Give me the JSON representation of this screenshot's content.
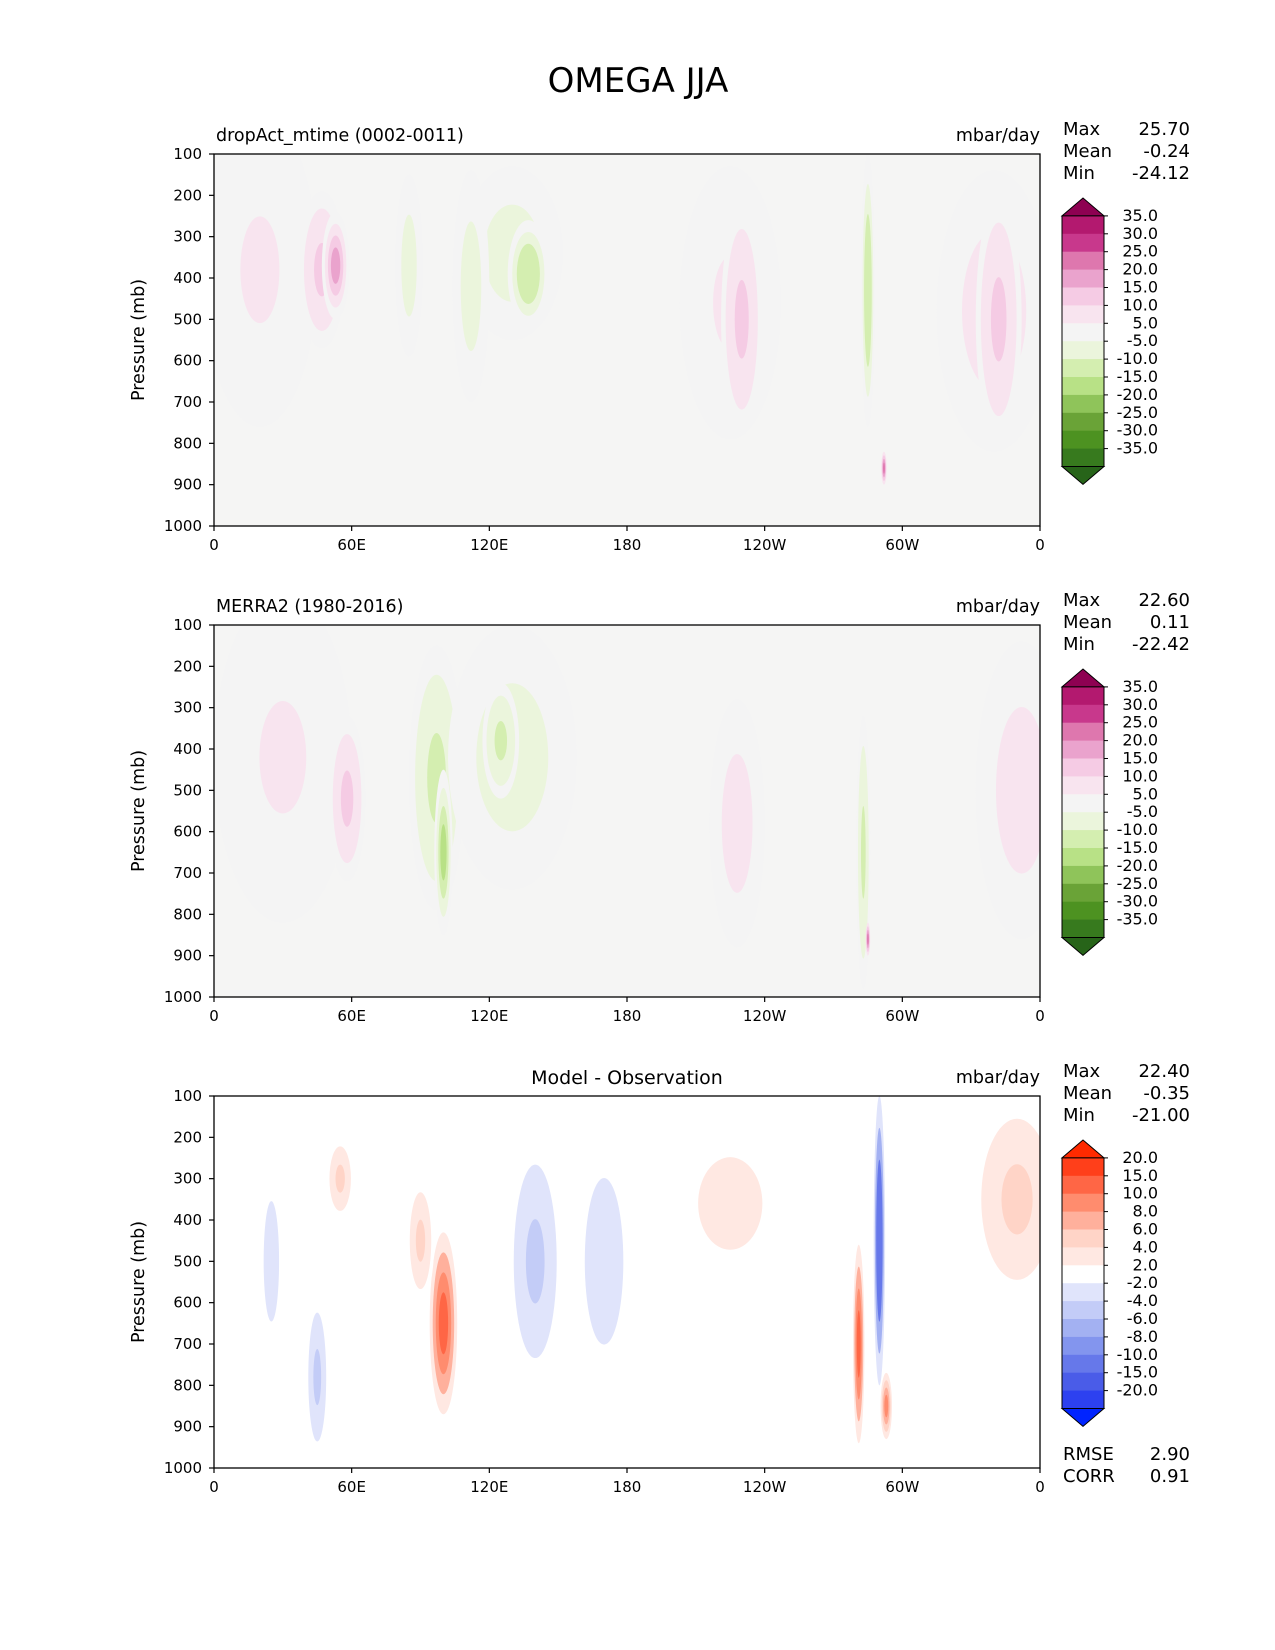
{
  "chart_data": {
    "type": "heatmap",
    "title": "OMEGA JJA",
    "panels": [
      {
        "id": "model",
        "title_left": "dropAct_mtime (0002-0011)",
        "title_center": "",
        "units": "mbar/day",
        "ylabel": "Pressure (mb)",
        "yticks": [
          "100",
          "200",
          "300",
          "400",
          "500",
          "600",
          "700",
          "800",
          "900",
          "1000"
        ],
        "xticks": [
          "0",
          "60E",
          "120E",
          "180",
          "120W",
          "60W",
          "0"
        ],
        "stats": [
          {
            "label": "Max",
            "value": "25.70"
          },
          {
            "label": "Mean",
            "value": "-0.24"
          },
          {
            "label": "Min",
            "value": "-24.12"
          }
        ],
        "colorbar": {
          "labels": [
            "35.0",
            "30.0",
            "25.0",
            "20.0",
            "15.0",
            "10.0",
            "5.0",
            "-5.0",
            "-10.0",
            "-15.0",
            "-20.0",
            "-25.0",
            "-30.0",
            "-35.0"
          ],
          "colors": [
            "#8e0152",
            "#b3196f",
            "#c8388c",
            "#de77ae",
            "#eaa3cd",
            "#f5cbe4",
            "#f8e4ef",
            "#f4f4f4",
            "#ebf5dc",
            "#d4eeb0",
            "#b8e186",
            "#8fc45a",
            "#6aa337",
            "#4d9221",
            "#377a1e",
            "#276419"
          ]
        },
        "features": [
          {
            "lon": 20,
            "p": 380,
            "wlon": 25,
            "wp": 380,
            "v": 6
          },
          {
            "lon": 47,
            "p": 380,
            "wlon": 10,
            "wp": 190,
            "v": 11
          },
          {
            "lon": 53,
            "p": 370,
            "wlon": 6,
            "wp": 130,
            "v": 17
          },
          {
            "lon": 85,
            "p": 370,
            "wlon": 6,
            "wp": 220,
            "v": -10
          },
          {
            "lon": 130,
            "p": 340,
            "wlon": 22,
            "wp": 210,
            "v": -8
          },
          {
            "lon": 137,
            "p": 390,
            "wlon": 9,
            "wp": 130,
            "v": -15
          },
          {
            "lon": 112,
            "p": 420,
            "wlon": 8,
            "wp": 280,
            "v": -9
          },
          {
            "lon": 225,
            "p": 460,
            "wlon": 22,
            "wp": 330,
            "v": 6
          },
          {
            "lon": 230,
            "p": 500,
            "wlon": 9,
            "wp": 280,
            "v": 10
          },
          {
            "lon": 285,
            "p": 430,
            "wlon": 3,
            "wp": 330,
            "v": -14
          },
          {
            "lon": 292,
            "p": 860,
            "wlon": 1.2,
            "wp": 40,
            "v": 24
          },
          {
            "lon": 340,
            "p": 480,
            "wlon": 25,
            "wp": 340,
            "v": 7
          },
          {
            "lon": 342,
            "p": 500,
            "wlon": 10,
            "wp": 300,
            "v": 11
          }
        ]
      },
      {
        "id": "obs",
        "title_left": "MERRA2 (1980-2016)",
        "title_center": "",
        "units": "mbar/day",
        "ylabel": "Pressure (mb)",
        "yticks": [
          "100",
          "200",
          "300",
          "400",
          "500",
          "600",
          "700",
          "800",
          "900",
          "1000"
        ],
        "xticks": [
          "0",
          "60E",
          "120E",
          "180",
          "120W",
          "60W",
          "0"
        ],
        "stats": [
          {
            "label": "Max",
            "value": "22.60"
          },
          {
            "label": "Mean",
            "value": "0.11"
          },
          {
            "label": "Min",
            "value": "-22.42"
          }
        ],
        "colorbar": {
          "labels": [
            "35.0",
            "30.0",
            "25.0",
            "20.0",
            "15.0",
            "10.0",
            "5.0",
            "-5.0",
            "-10.0",
            "-15.0",
            "-20.0",
            "-25.0",
            "-30.0",
            "-35.0"
          ],
          "colors": [
            "#8e0152",
            "#b3196f",
            "#c8388c",
            "#de77ae",
            "#eaa3cd",
            "#f5cbe4",
            "#f8e4ef",
            "#f4f4f4",
            "#ebf5dc",
            "#d4eeb0",
            "#b8e186",
            "#8fc45a",
            "#6aa337",
            "#4d9221",
            "#377a1e",
            "#276419"
          ]
        },
        "features": [
          {
            "lon": 30,
            "p": 420,
            "wlon": 30,
            "wp": 400,
            "v": 6
          },
          {
            "lon": 58,
            "p": 520,
            "wlon": 8,
            "wp": 200,
            "v": 12
          },
          {
            "lon": 97,
            "p": 470,
            "wlon": 12,
            "wp": 320,
            "v": -11
          },
          {
            "lon": 100,
            "p": 650,
            "wlon": 4,
            "wp": 200,
            "v": -17
          },
          {
            "lon": 130,
            "p": 420,
            "wlon": 28,
            "wp": 320,
            "v": -7
          },
          {
            "lon": 125,
            "p": 380,
            "wlon": 8,
            "wp": 140,
            "v": -11
          },
          {
            "lon": 228,
            "p": 580,
            "wlon": 12,
            "wp": 300,
            "v": 7
          },
          {
            "lon": 283,
            "p": 650,
            "wlon": 3,
            "wp": 330,
            "v": -13
          },
          {
            "lon": 285,
            "p": 860,
            "wlon": 1,
            "wp": 40,
            "v": 20
          },
          {
            "lon": 352,
            "p": 500,
            "wlon": 20,
            "wp": 360,
            "v": 7
          }
        ]
      },
      {
        "id": "diff",
        "title_left": "",
        "title_center": "Model - Observation",
        "units": "mbar/day",
        "ylabel": "Pressure (mb)",
        "yticks": [
          "100",
          "200",
          "300",
          "400",
          "500",
          "600",
          "700",
          "800",
          "900",
          "1000"
        ],
        "xticks": [
          "0",
          "60E",
          "120E",
          "180",
          "120W",
          "60W",
          "0"
        ],
        "stats": [
          {
            "label": "Max",
            "value": "22.40"
          },
          {
            "label": "Mean",
            "value": "-0.35"
          },
          {
            "label": "Min",
            "value": "-21.00"
          }
        ],
        "colorbar": {
          "labels": [
            "20.0",
            "15.0",
            "10.0",
            "8.0",
            "6.0",
            "4.0",
            "2.0",
            "-2.0",
            "-4.0",
            "-6.0",
            "-8.0",
            "-10.0",
            "-15.0",
            "-20.0"
          ],
          "colors": [
            "#ff2a00",
            "#ff3f1a",
            "#ff6645",
            "#ff8c6e",
            "#ffb09c",
            "#ffd4c7",
            "#ffe8e2",
            "#ffffff",
            "#e0e4fb",
            "#c3ccf7",
            "#a3b1f2",
            "#8395ee",
            "#6678ea",
            "#4a5ce8",
            "#2d41f0",
            "#0024ff"
          ]
        },
        "features": [
          {
            "lon": 55,
            "p": 300,
            "wlon": 6,
            "wp": 100,
            "v": 4
          },
          {
            "lon": 25,
            "p": 500,
            "wlon": 6,
            "wp": 260,
            "v": -4
          },
          {
            "lon": 45,
            "p": 780,
            "wlon": 5,
            "wp": 200,
            "v": -5
          },
          {
            "lon": 100,
            "p": 650,
            "wlon": 6,
            "wp": 220,
            "v": 12
          },
          {
            "lon": 90,
            "p": 450,
            "wlon": 6,
            "wp": 150,
            "v": 4
          },
          {
            "lon": 140,
            "p": 500,
            "wlon": 12,
            "wp": 300,
            "v": -5
          },
          {
            "lon": 170,
            "p": 500,
            "wlon": 15,
            "wp": 360,
            "v": -3
          },
          {
            "lon": 225,
            "p": 360,
            "wlon": 25,
            "wp": 200,
            "v": 3
          },
          {
            "lon": 290,
            "p": 450,
            "wlon": 2.5,
            "wp": 350,
            "v": -14
          },
          {
            "lon": 281,
            "p": 700,
            "wlon": 2.5,
            "wp": 240,
            "v": 12
          },
          {
            "lon": 293,
            "p": 850,
            "wlon": 2.5,
            "wp": 80,
            "v": 9
          },
          {
            "lon": 350,
            "p": 350,
            "wlon": 20,
            "wp": 250,
            "v": 4
          }
        ],
        "extra_stats": [
          {
            "label": "RMSE",
            "value": "2.90"
          },
          {
            "label": "CORR",
            "value": "0.91"
          }
        ]
      }
    ]
  }
}
